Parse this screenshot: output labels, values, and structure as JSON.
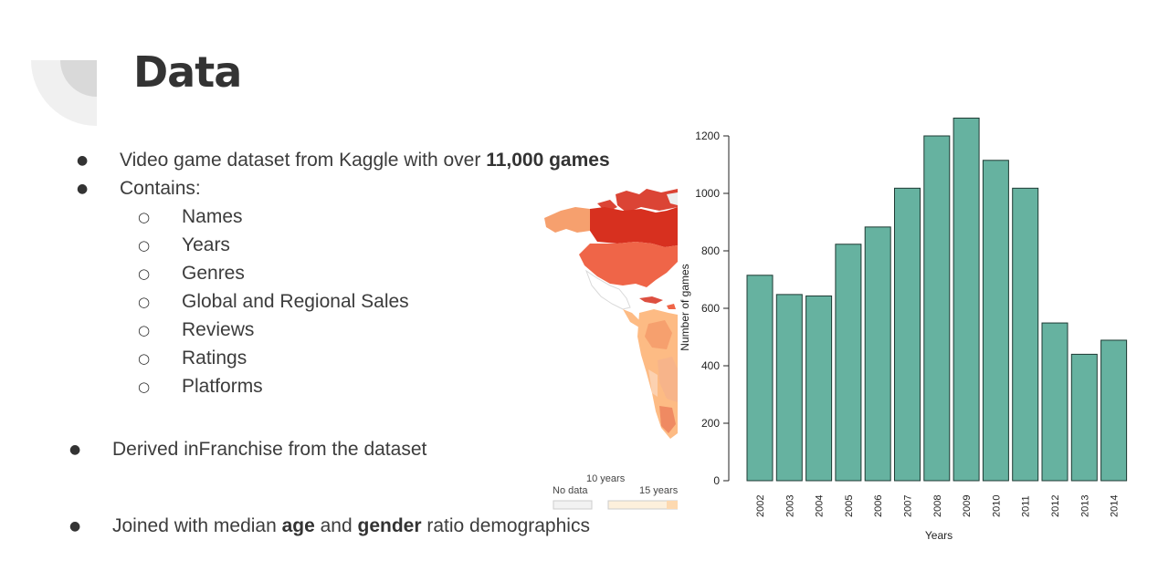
{
  "slide": {
    "title": "Data",
    "bullets": [
      {
        "before": "Video game dataset from Kaggle with over ",
        "bold": "11,000 games"
      },
      {
        "text": "Contains:"
      }
    ],
    "sub_items": [
      "Names",
      "Years",
      "Genres",
      "Global and Regional Sales",
      "Reviews",
      "Ratings",
      "Platforms"
    ],
    "derived": "Derived inFranchise from the dataset",
    "joined": {
      "part1": "Joined with median ",
      "bold1": "age",
      "part2": " and ",
      "bold2": "gender",
      "part3": " ratio demographics"
    }
  },
  "map_legend": {
    "title": "10 years",
    "no_data": "No data",
    "bin_label": "15 years"
  },
  "colors": {
    "bar_fill": "#66b2a0",
    "bar_stroke": "#1e3a33",
    "map_dark": "#d7301f",
    "map_mid": "#ef6548",
    "map_light": "#fdbb84"
  },
  "chart_data": {
    "type": "bar",
    "categories": [
      "2002",
      "2003",
      "2004",
      "2005",
      "2006",
      "2007",
      "2008",
      "2009",
      "2010",
      "2011",
      "2012",
      "2013",
      "2014"
    ],
    "values": [
      715,
      648,
      643,
      823,
      883,
      1018,
      1200,
      1262,
      1115,
      1018,
      549,
      440,
      489
    ],
    "xlabel": "Years",
    "ylabel": "Number of games",
    "ylim": [
      0,
      1300
    ],
    "yticks": [
      0,
      200,
      400,
      600,
      800,
      1000,
      1200
    ],
    "grid": false
  }
}
